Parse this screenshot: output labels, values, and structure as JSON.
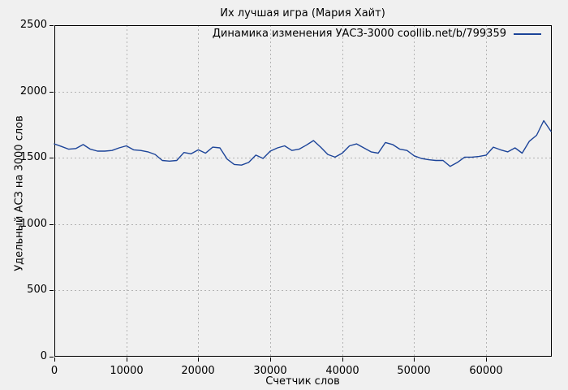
{
  "chart_data": {
    "type": "line",
    "title": "Их лучшая игра (Мария Хайт)",
    "legend": "Динамика изменения УАСЗ-3000 coollib.net/b/799359",
    "xlabel": "Счетчик слов",
    "ylabel": "Удельный АСЗ на 3000 слов",
    "xlim": [
      0,
      69000
    ],
    "ylim": [
      0,
      2500
    ],
    "x_ticks": [
      0,
      10000,
      20000,
      30000,
      40000,
      50000,
      60000
    ],
    "y_ticks": [
      0,
      500,
      1000,
      1500,
      2000,
      2500
    ],
    "grid": "dashed",
    "legend_position": "top-right-inside",
    "series": [
      {
        "name": "Динамика изменения УАСЗ-3000 coollib.net/b/799359",
        "points": [
          [
            0,
            1605
          ],
          [
            1000,
            1585
          ],
          [
            2000,
            1565
          ],
          [
            3000,
            1570
          ],
          [
            4000,
            1600
          ],
          [
            5000,
            1565
          ],
          [
            6000,
            1550
          ],
          [
            7000,
            1550
          ],
          [
            8000,
            1555
          ],
          [
            9000,
            1575
          ],
          [
            10000,
            1590
          ],
          [
            11000,
            1560
          ],
          [
            12000,
            1555
          ],
          [
            13000,
            1545
          ],
          [
            14000,
            1525
          ],
          [
            15000,
            1480
          ],
          [
            16000,
            1475
          ],
          [
            17000,
            1480
          ],
          [
            18000,
            1540
          ],
          [
            19000,
            1530
          ],
          [
            20000,
            1560
          ],
          [
            21000,
            1535
          ],
          [
            22000,
            1580
          ],
          [
            23000,
            1575
          ],
          [
            24000,
            1490
          ],
          [
            25000,
            1450
          ],
          [
            26000,
            1445
          ],
          [
            27000,
            1465
          ],
          [
            28000,
            1520
          ],
          [
            29000,
            1495
          ],
          [
            30000,
            1550
          ],
          [
            31000,
            1575
          ],
          [
            32000,
            1590
          ],
          [
            33000,
            1555
          ],
          [
            34000,
            1565
          ],
          [
            35000,
            1595
          ],
          [
            36000,
            1630
          ],
          [
            37000,
            1580
          ],
          [
            38000,
            1525
          ],
          [
            39000,
            1505
          ],
          [
            40000,
            1535
          ],
          [
            41000,
            1590
          ],
          [
            42000,
            1605
          ],
          [
            43000,
            1575
          ],
          [
            44000,
            1545
          ],
          [
            45000,
            1535
          ],
          [
            46000,
            1615
          ],
          [
            47000,
            1600
          ],
          [
            48000,
            1565
          ],
          [
            49000,
            1555
          ],
          [
            50000,
            1515
          ],
          [
            51000,
            1495
          ],
          [
            52000,
            1485
          ],
          [
            53000,
            1480
          ],
          [
            54000,
            1480
          ],
          [
            55000,
            1435
          ],
          [
            56000,
            1465
          ],
          [
            57000,
            1505
          ],
          [
            58000,
            1505
          ],
          [
            59000,
            1510
          ],
          [
            60000,
            1520
          ],
          [
            61000,
            1580
          ],
          [
            62000,
            1560
          ],
          [
            63000,
            1545
          ],
          [
            64000,
            1575
          ],
          [
            65000,
            1535
          ],
          [
            66000,
            1625
          ],
          [
            67000,
            1670
          ],
          [
            68000,
            1780
          ],
          [
            69000,
            1700
          ]
        ]
      }
    ],
    "colors": {
      "line": "#1c4499",
      "grid": "#b3b3b3",
      "border": "#000000",
      "background": "#f0f0f0",
      "text": "#000000"
    }
  }
}
